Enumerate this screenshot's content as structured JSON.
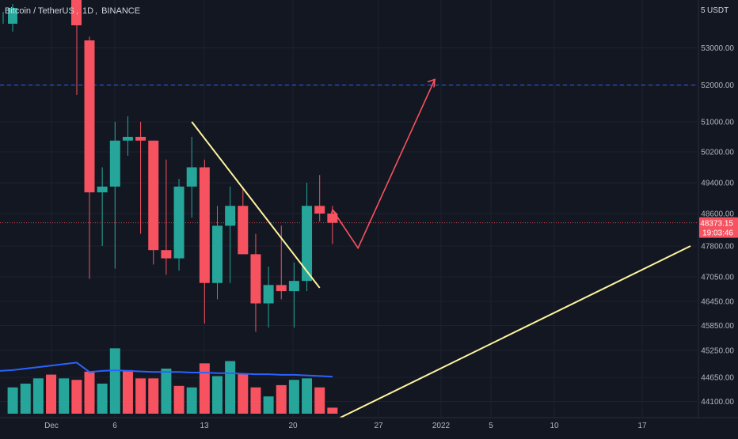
{
  "header": {
    "symbol": "Bitcoin / TetherUS",
    "interval": "1D",
    "exchange": "BINANCE",
    "currency": "USDT",
    "axis_top_partial": "5"
  },
  "price_label": {
    "price": "48373.15",
    "countdown": "19:03:46",
    "color": "#f7525f"
  },
  "colors": {
    "background": "#131722",
    "up": "#26a69a",
    "down": "#f7525f",
    "grid": "#1e222d",
    "trendline": "#fff59d",
    "projection": "#f7525f",
    "ma": "#2962ff",
    "level": "#2962ff"
  },
  "chart_data": {
    "type": "candlestick",
    "y_axis_ticks": [
      "53000.00",
      "52000.00",
      "51000.00",
      "50200.00",
      "49400.00",
      "48600.00",
      "47800.00",
      "47050.00",
      "46450.00",
      "45850.00",
      "45250.00",
      "44650.00",
      "44100.00"
    ],
    "x_axis_ticks": [
      "Dec",
      "6",
      "13",
      "20",
      "27",
      "2022",
      "5",
      "10",
      "17"
    ],
    "horizontal_level": 52000,
    "candles": [
      {
        "date": "Dec 4",
        "open": 53200,
        "high": 53300,
        "low": 47000,
        "close": 49150
      },
      {
        "date": "Dec 5",
        "open": 49150,
        "high": 49800,
        "low": 47800,
        "close": 49300
      },
      {
        "date": "Dec 6",
        "open": 49300,
        "high": 51000,
        "low": 47250,
        "close": 50500
      },
      {
        "date": "Dec 7",
        "open": 50500,
        "high": 51150,
        "low": 50100,
        "close": 50600
      },
      {
        "date": "Dec 8",
        "open": 50600,
        "high": 51000,
        "low": 48100,
        "close": 50500
      },
      {
        "date": "Dec 9",
        "open": 50500,
        "high": 50500,
        "low": 47350,
        "close": 47700
      },
      {
        "date": "Dec 10",
        "open": 47700,
        "high": 50000,
        "low": 47100,
        "close": 47500
      },
      {
        "date": "Dec 11",
        "open": 47500,
        "high": 49500,
        "low": 47200,
        "close": 49300
      },
      {
        "date": "Dec 12",
        "open": 49300,
        "high": 50600,
        "low": 48500,
        "close": 49800
      },
      {
        "date": "Dec 13",
        "open": 49800,
        "high": 50000,
        "low": 45900,
        "close": 46900
      },
      {
        "date": "Dec 14",
        "open": 46900,
        "high": 48800,
        "low": 46500,
        "close": 48300
      },
      {
        "date": "Dec 15",
        "open": 48300,
        "high": 49300,
        "low": 46900,
        "close": 48800
      },
      {
        "date": "Dec 16",
        "open": 48800,
        "high": 49300,
        "low": 47600,
        "close": 47600
      },
      {
        "date": "Dec 17",
        "open": 47600,
        "high": 48100,
        "low": 45700,
        "close": 46400
      },
      {
        "date": "Dec 18",
        "open": 46400,
        "high": 47300,
        "low": 45800,
        "close": 46850
      },
      {
        "date": "Dec 19",
        "open": 46850,
        "high": 48300,
        "low": 46500,
        "close": 46700
      },
      {
        "date": "Dec 20",
        "open": 46700,
        "high": 47400,
        "low": 45800,
        "close": 46950
      },
      {
        "date": "Dec 21",
        "open": 46950,
        "high": 49400,
        "low": 46700,
        "close": 48800
      },
      {
        "date": "Dec 22",
        "open": 48800,
        "high": 49600,
        "low": 48400,
        "close": 48600
      },
      {
        "date": "Dec 23",
        "open": 48600,
        "high": 48800,
        "low": 47850,
        "close": 48373.15
      }
    ],
    "volume_relative": [
      0.56,
      0.4,
      0.87,
      0.58,
      0.47,
      0.47,
      0.6,
      0.37,
      0.35,
      0.67,
      0.5,
      0.7,
      0.53,
      0.35,
      0.23,
      0.38,
      0.45,
      0.47,
      0.35,
      0.08
    ],
    "volume_is_up": [
      false,
      true,
      true,
      false,
      false,
      false,
      true,
      false,
      true,
      false,
      true,
      true,
      false,
      false,
      true,
      false,
      true,
      true,
      false,
      false
    ],
    "volume_ma_relative": [
      0.73,
      0.75,
      0.76,
      0.75,
      0.74,
      0.73,
      0.73,
      0.73,
      0.72,
      0.72,
      0.71,
      0.71,
      0.7,
      0.69,
      0.69,
      0.68,
      0.68,
      0.67,
      0.66,
      0.65
    ],
    "trendlines": [
      {
        "from": {
          "date": "Dec 12",
          "price": 51000
        },
        "to": {
          "date": "Dec 22",
          "price": 46780
        }
      },
      {
        "from": {
          "date": "Dec 22",
          "price": 43500
        },
        "to": {
          "date": "Jan 20",
          "price": 47800
        }
      }
    ],
    "projection_path": [
      {
        "date": "Dec 23",
        "price": 48700
      },
      {
        "date": "Dec 25",
        "price": 47750
      },
      {
        "date": "Dec 31",
        "price": 52150
      }
    ]
  }
}
